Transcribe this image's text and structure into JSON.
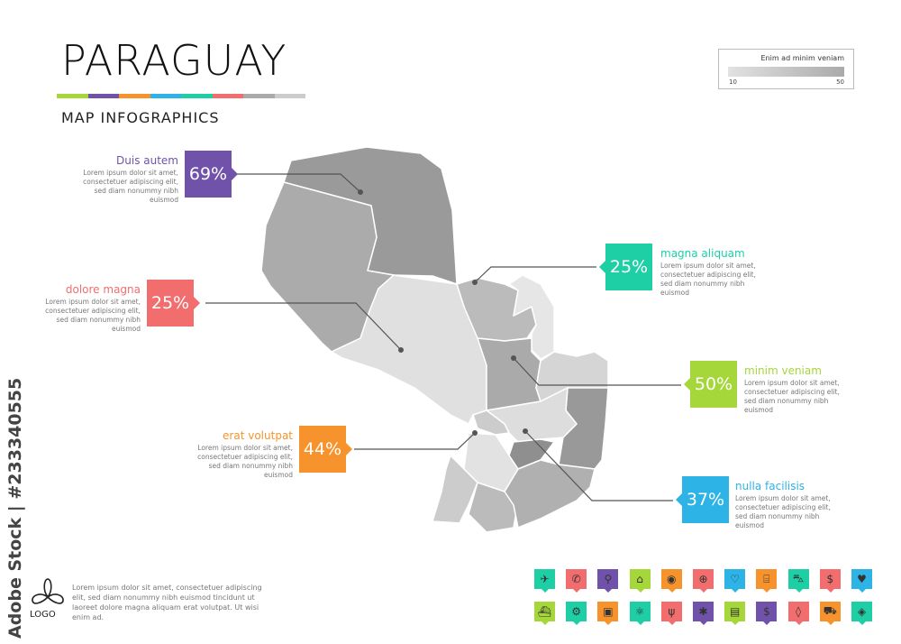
{
  "header": {
    "title": "PARAGUAY",
    "subtitle": "MAP INFOGRAPHICS",
    "color_bar": [
      "#a5d63a",
      "#7152ab",
      "#f7932c",
      "#2db3e6",
      "#1ecfa6",
      "#f26d6d",
      "#aaaaaa",
      "#cccccc"
    ]
  },
  "legend": {
    "title": "Enim ad minim veniam",
    "min": "10",
    "max": "50",
    "gradient": [
      "#e2e2e2",
      "#aaaaaa"
    ]
  },
  "callouts": [
    {
      "heading": "Duis autem",
      "value": "69%",
      "color": "#7152ab",
      "body": "Lorem ipsum dolor sit amet, consectetuer adipiscing elit, sed diam nonummy nibh euismod"
    },
    {
      "heading": "dolore magna",
      "value": "25%",
      "color": "#f26d6d",
      "body": "Lorem ipsum dolor sit amet, consectetuer adipiscing elit, sed diam nonummy nibh euismod"
    },
    {
      "heading": "erat volutpat",
      "value": "44%",
      "color": "#f7932c",
      "body": "Lorem ipsum dolor sit amet, consectetuer adipiscing elit, sed diam nonummy nibh euismod"
    },
    {
      "heading": "magna aliquam",
      "value": "25%",
      "color": "#1ecfa6",
      "body": "Lorem ipsum dolor sit amet, consectetuer adipiscing elit, sed diam nonummy nibh euismod"
    },
    {
      "heading": "minim veniam",
      "value": "50%",
      "color": "#a5d63a",
      "body": "Lorem ipsum dolor sit amet, consectetuer adipiscing elit, sed diam nonummy nibh euismod"
    },
    {
      "heading": "nulla facilisis",
      "value": "37%",
      "color": "#2db3e6",
      "body": "Lorem ipsum dolor sit amet, consectetuer adipiscing elit, sed diam nonummy nibh euismod"
    }
  ],
  "icons": [
    [
      {
        "name": "airplane",
        "glyph": "✈",
        "color": "#1ecfa6"
      },
      {
        "name": "phone",
        "glyph": "✆",
        "color": "#f26d6d"
      },
      {
        "name": "pin",
        "glyph": "⚲",
        "color": "#7152ab"
      },
      {
        "name": "bank",
        "glyph": "⌂",
        "color": "#a5d63a"
      },
      {
        "name": "location",
        "glyph": "◉",
        "color": "#f7932c"
      },
      {
        "name": "globe",
        "glyph": "⊕",
        "color": "#f26d6d"
      },
      {
        "name": "heart",
        "glyph": "♡",
        "color": "#2db3e6"
      },
      {
        "name": "factory",
        "glyph": "⌸",
        "color": "#f7932c"
      },
      {
        "name": "car",
        "glyph": "⛍",
        "color": "#1ecfa6"
      },
      {
        "name": "dollar",
        "glyph": "$",
        "color": "#f26d6d"
      },
      {
        "name": "shopping-bag",
        "glyph": "♥",
        "color": "#2db3e6"
      }
    ],
    [
      {
        "name": "ship",
        "glyph": "⛴",
        "color": "#a5d63a"
      },
      {
        "name": "motorcycle",
        "glyph": "⚙",
        "color": "#1ecfa6"
      },
      {
        "name": "bus",
        "glyph": "▣",
        "color": "#f7932c"
      },
      {
        "name": "atom",
        "glyph": "⚛",
        "color": "#1ecfa6"
      },
      {
        "name": "fork-knife",
        "glyph": "ψ",
        "color": "#f26d6d"
      },
      {
        "name": "medical",
        "glyph": "✱",
        "color": "#7152ab"
      },
      {
        "name": "shop",
        "glyph": "▤",
        "color": "#a5d63a"
      },
      {
        "name": "money-exchange",
        "glyph": "$",
        "color": "#7152ab"
      },
      {
        "name": "drop",
        "glyph": "◊",
        "color": "#f26d6d"
      },
      {
        "name": "truck",
        "glyph": "⛟",
        "color": "#f7932c"
      },
      {
        "name": "map",
        "glyph": "◈",
        "color": "#1ecfa6"
      }
    ]
  ],
  "footer": {
    "text": "Lorem ipsum dolor sit amet, consectetuer adipiscing elit, sed diam nonummy nibh euismod tincidunt ut laoreet dolore magna aliquam erat volutpat. Ut wisi enim ad.",
    "logo": "LOGO",
    "watermark": "Adobe Stock | #233340555"
  }
}
